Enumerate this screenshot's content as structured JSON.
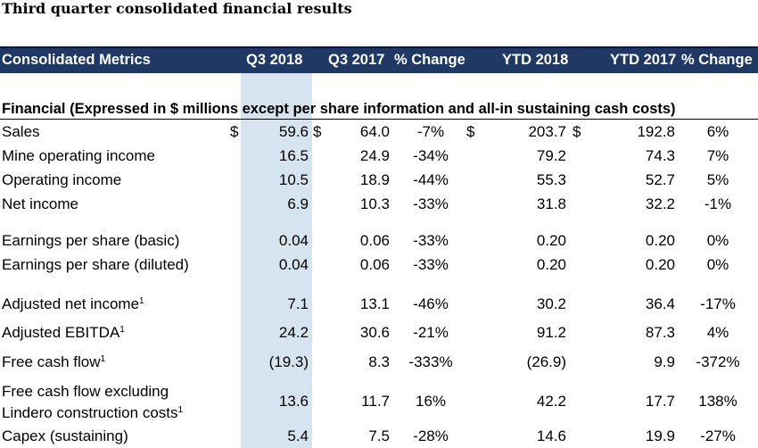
{
  "title": "Third quarter consolidated financial results",
  "header": {
    "metric": "Consolidated Metrics",
    "q3_2018": "Q3 2018",
    "q3_2017": "Q3 2017",
    "q_change": "% Change",
    "ytd_2018": "YTD 2018",
    "ytd_2017": "YTD 2017",
    "ytd_change": "% Change"
  },
  "section_label": "Financial (Expressed in $ millions except per share information and all-in sustaining cash costs)",
  "rows": [
    {
      "label": "Sales",
      "sup": "",
      "label2": "",
      "q3_2018": "59.6",
      "q3_2017": "64.0",
      "q_change": "-7%",
      "ytd_2018": "203.7",
      "ytd_2017": "192.8",
      "ytd_change": "6%",
      "dollar_a": "$",
      "dollar_b": "$",
      "dollar_c": "$",
      "dollar_d": "$"
    },
    {
      "label": "Mine operating income",
      "sup": "",
      "label2": "",
      "q3_2018": "16.5",
      "q3_2017": "24.9",
      "q_change": "-34%",
      "ytd_2018": "79.2",
      "ytd_2017": "74.3",
      "ytd_change": "7%"
    },
    {
      "label": "Operating income",
      "sup": "",
      "label2": "",
      "q3_2018": "10.5",
      "q3_2017": "18.9",
      "q_change": "-44%",
      "ytd_2018": "55.3",
      "ytd_2017": "52.7",
      "ytd_change": "5%"
    },
    {
      "label": "Net income",
      "sup": "",
      "label2": "",
      "q3_2018": "6.9",
      "q3_2017": "10.3",
      "q_change": "-33%",
      "ytd_2018": "31.8",
      "ytd_2017": "32.2",
      "ytd_change": "-1%"
    },
    {
      "label": "Earnings per share (basic)",
      "sup": "",
      "label2": "",
      "q3_2018": "0.04",
      "q3_2017": "0.06",
      "q_change": "-33%",
      "ytd_2018": "0.20",
      "ytd_2017": "0.20",
      "ytd_change": "0%"
    },
    {
      "label": "Earnings per share (diluted)",
      "sup": "",
      "label2": "",
      "q3_2018": "0.04",
      "q3_2017": "0.06",
      "q_change": "-33%",
      "ytd_2018": "0.20",
      "ytd_2017": "0.20",
      "ytd_change": "0%"
    },
    {
      "label": "Adjusted net income",
      "sup": "1",
      "label2": "",
      "q3_2018": "7.1",
      "q3_2017": "13.1",
      "q_change": "-46%",
      "ytd_2018": "30.2",
      "ytd_2017": "36.4",
      "ytd_change": "-17%"
    },
    {
      "label": "Adjusted EBITDA",
      "sup": "1",
      "label2": "",
      "q3_2018": "24.2",
      "q3_2017": "30.6",
      "q_change": "-21%",
      "ytd_2018": "91.2",
      "ytd_2017": "87.3",
      "ytd_change": "4%"
    },
    {
      "label": "Free cash flow",
      "sup": "1",
      "label2": "",
      "q3_2018": "(19.3)",
      "q3_2017": "8.3",
      "q_change": "-333%",
      "ytd_2018": "(26.9)",
      "ytd_2017": "9.9",
      "ytd_change": "-372%"
    },
    {
      "label": "Free cash flow excluding",
      "sup": "1",
      "label2": "Lindero construction costs",
      "q3_2018": "13.6",
      "q3_2017": "11.7",
      "q_change": "16%",
      "ytd_2018": "42.2",
      "ytd_2017": "17.7",
      "ytd_change": "138%"
    },
    {
      "label": "Capex (sustaining)",
      "sup": "",
      "label2": "",
      "q3_2018": "5.4",
      "q3_2017": "7.5",
      "q_change": "-28%",
      "ytd_2018": "14.6",
      "ytd_2017": "19.9",
      "ytd_change": "-27%"
    }
  ]
}
